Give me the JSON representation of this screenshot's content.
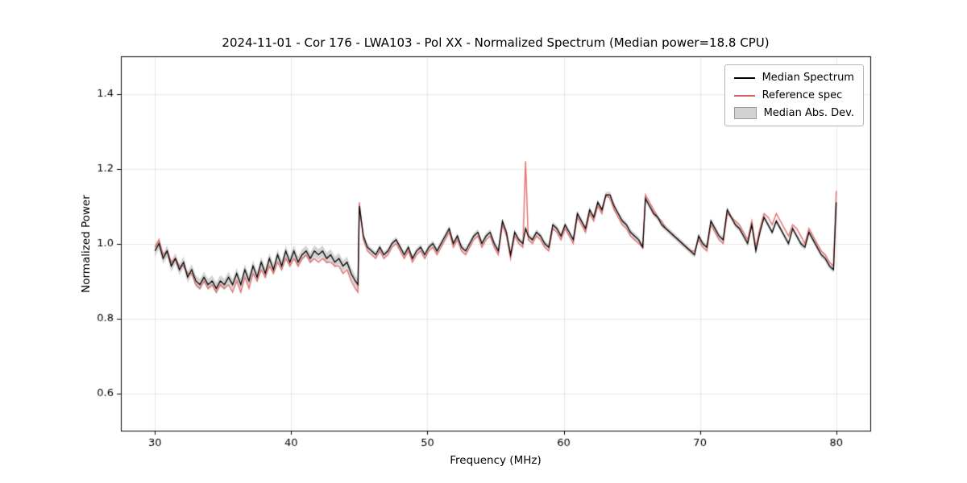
{
  "figure": {
    "title": "2024-11-01 - Cor 176 - LWA103 - Pol XX - Normalized Spectrum (Median power=18.8 CPU)",
    "xlabel": "Frequency (MHz)",
    "ylabel": "Normalized Power"
  },
  "legend": {
    "items": [
      {
        "label": "Median Spectrum",
        "type": "line",
        "color": "#000000"
      },
      {
        "label": "Reference spec",
        "type": "line",
        "color": "#e05c5c"
      },
      {
        "label": "Median Abs. Dev.",
        "type": "patch",
        "color": "#d2d2d2"
      }
    ]
  },
  "chart_data": {
    "type": "line",
    "title": "2024-11-01 - Cor 176 - LWA103 - Pol XX - Normalized Spectrum (Median power=18.8 CPU)",
    "xlabel": "Frequency (MHz)",
    "ylabel": "Normalized Power",
    "xlim": [
      27.5,
      82.5
    ],
    "ylim": [
      0.5,
      1.5
    ],
    "xticks": [
      30,
      40,
      50,
      60,
      70,
      80
    ],
    "yticks": [
      0.6,
      0.8,
      1.0,
      1.2,
      1.4
    ],
    "grid": true,
    "legend_position": "upper right",
    "x": [
      30.0,
      30.3,
      30.6,
      30.9,
      31.2,
      31.5,
      31.8,
      32.1,
      32.4,
      32.7,
      33.0,
      33.3,
      33.6,
      33.9,
      34.2,
      34.5,
      34.8,
      35.1,
      35.4,
      35.7,
      36.0,
      36.3,
      36.6,
      36.9,
      37.2,
      37.5,
      37.8,
      38.1,
      38.4,
      38.7,
      39.0,
      39.3,
      39.6,
      39.9,
      40.2,
      40.5,
      40.8,
      41.1,
      41.4,
      41.7,
      42.0,
      42.3,
      42.6,
      42.9,
      43.2,
      43.5,
      43.8,
      44.1,
      44.4,
      44.7,
      44.9,
      45.0,
      45.3,
      45.6,
      45.9,
      46.2,
      46.5,
      46.8,
      47.1,
      47.4,
      47.7,
      48.0,
      48.3,
      48.6,
      48.9,
      49.2,
      49.5,
      49.8,
      50.1,
      50.4,
      50.7,
      51.0,
      51.3,
      51.6,
      51.9,
      52.2,
      52.5,
      52.8,
      53.1,
      53.4,
      53.7,
      54.0,
      54.3,
      54.6,
      54.9,
      55.2,
      55.5,
      55.8,
      56.1,
      56.4,
      56.7,
      57.0,
      57.2,
      57.4,
      57.7,
      58.0,
      58.3,
      58.6,
      58.9,
      59.2,
      59.5,
      59.8,
      60.1,
      60.4,
      60.7,
      61.0,
      61.3,
      61.6,
      61.9,
      62.2,
      62.5,
      62.8,
      63.1,
      63.4,
      63.7,
      64.0,
      64.3,
      64.6,
      64.9,
      65.2,
      65.5,
      65.8,
      66.0,
      66.3,
      66.6,
      66.9,
      67.2,
      67.5,
      67.8,
      68.1,
      68.4,
      68.7,
      69.0,
      69.3,
      69.6,
      69.9,
      70.2,
      70.5,
      70.8,
      71.1,
      71.4,
      71.7,
      72.0,
      72.3,
      72.6,
      72.9,
      73.2,
      73.5,
      73.8,
      74.1,
      74.4,
      74.7,
      75.0,
      75.3,
      75.6,
      75.9,
      76.2,
      76.5,
      76.8,
      77.1,
      77.4,
      77.7,
      78.0,
      78.3,
      78.6,
      78.9,
      79.2,
      79.5,
      79.8,
      80.0
    ],
    "series": [
      {
        "name": "Median Spectrum",
        "color": "#000000",
        "values": [
          0.98,
          1.0,
          0.96,
          0.98,
          0.94,
          0.96,
          0.93,
          0.95,
          0.91,
          0.93,
          0.9,
          0.89,
          0.91,
          0.89,
          0.9,
          0.88,
          0.9,
          0.89,
          0.91,
          0.89,
          0.92,
          0.89,
          0.93,
          0.9,
          0.94,
          0.91,
          0.95,
          0.92,
          0.96,
          0.93,
          0.97,
          0.94,
          0.98,
          0.95,
          0.98,
          0.95,
          0.97,
          0.98,
          0.96,
          0.98,
          0.97,
          0.98,
          0.96,
          0.97,
          0.95,
          0.96,
          0.94,
          0.95,
          0.92,
          0.9,
          0.89,
          1.1,
          1.02,
          0.99,
          0.98,
          0.97,
          0.99,
          0.97,
          0.98,
          1.0,
          1.01,
          0.99,
          0.97,
          0.99,
          0.96,
          0.98,
          0.99,
          0.97,
          0.99,
          1.0,
          0.98,
          1.0,
          1.02,
          1.04,
          1.0,
          1.02,
          0.99,
          0.98,
          1.0,
          1.02,
          1.03,
          1.0,
          1.02,
          1.03,
          1.0,
          0.98,
          1.06,
          1.03,
          0.97,
          1.03,
          1.01,
          1.0,
          1.04,
          1.02,
          1.01,
          1.03,
          1.02,
          1.0,
          0.99,
          1.05,
          1.04,
          1.02,
          1.05,
          1.03,
          1.01,
          1.08,
          1.06,
          1.04,
          1.09,
          1.07,
          1.11,
          1.09,
          1.13,
          1.13,
          1.1,
          1.08,
          1.06,
          1.05,
          1.03,
          1.02,
          1.01,
          0.99,
          1.12,
          1.1,
          1.08,
          1.07,
          1.05,
          1.04,
          1.03,
          1.02,
          1.01,
          1.0,
          0.99,
          0.98,
          0.97,
          1.02,
          1.0,
          0.99,
          1.06,
          1.04,
          1.02,
          1.01,
          1.09,
          1.07,
          1.05,
          1.04,
          1.02,
          1.0,
          1.05,
          0.98,
          1.03,
          1.07,
          1.05,
          1.03,
          1.06,
          1.04,
          1.02,
          1.0,
          1.04,
          1.02,
          1.0,
          0.99,
          1.03,
          1.01,
          0.99,
          0.97,
          0.96,
          0.94,
          0.93,
          1.11
        ]
      },
      {
        "name": "Reference spec",
        "color": "#e05c5c",
        "values": [
          0.99,
          1.01,
          0.97,
          0.98,
          0.95,
          0.96,
          0.94,
          0.94,
          0.92,
          0.92,
          0.89,
          0.88,
          0.9,
          0.88,
          0.89,
          0.87,
          0.89,
          0.88,
          0.89,
          0.87,
          0.9,
          0.87,
          0.91,
          0.88,
          0.92,
          0.9,
          0.93,
          0.91,
          0.94,
          0.92,
          0.95,
          0.93,
          0.96,
          0.94,
          0.96,
          0.94,
          0.96,
          0.97,
          0.95,
          0.96,
          0.95,
          0.96,
          0.95,
          0.95,
          0.94,
          0.94,
          0.92,
          0.93,
          0.9,
          0.88,
          0.87,
          1.11,
          1.01,
          0.98,
          0.97,
          0.96,
          0.98,
          0.96,
          0.97,
          0.99,
          1.0,
          0.98,
          0.96,
          0.98,
          0.95,
          0.97,
          0.98,
          0.96,
          0.98,
          0.99,
          0.97,
          0.99,
          1.01,
          1.03,
          0.99,
          1.01,
          0.98,
          0.97,
          0.99,
          1.01,
          1.02,
          0.99,
          1.01,
          1.02,
          0.99,
          0.97,
          1.05,
          1.02,
          0.96,
          1.02,
          1.0,
          0.99,
          1.22,
          1.01,
          1.0,
          1.02,
          1.01,
          0.99,
          0.98,
          1.04,
          1.03,
          1.01,
          1.04,
          1.02,
          1.0,
          1.07,
          1.05,
          1.03,
          1.08,
          1.06,
          1.1,
          1.08,
          1.13,
          1.12,
          1.09,
          1.07,
          1.05,
          1.04,
          1.02,
          1.01,
          1.0,
          0.99,
          1.13,
          1.11,
          1.09,
          1.07,
          1.06,
          1.04,
          1.03,
          1.02,
          1.01,
          1.0,
          0.99,
          0.98,
          0.98,
          1.01,
          0.99,
          0.98,
          1.05,
          1.03,
          1.01,
          1.0,
          1.08,
          1.07,
          1.06,
          1.05,
          1.03,
          1.01,
          1.06,
          0.99,
          1.04,
          1.08,
          1.07,
          1.05,
          1.08,
          1.06,
          1.04,
          1.02,
          1.05,
          1.04,
          1.02,
          1.0,
          1.04,
          1.02,
          1.0,
          0.98,
          0.97,
          0.95,
          0.94,
          1.14
        ]
      }
    ],
    "mad_band": {
      "series": "Median Spectrum",
      "halfwidth_low": 0.015,
      "halfwidth_high": 0.008,
      "split_mhz": 45,
      "color": "rgba(160,160,160,0.45)"
    }
  }
}
